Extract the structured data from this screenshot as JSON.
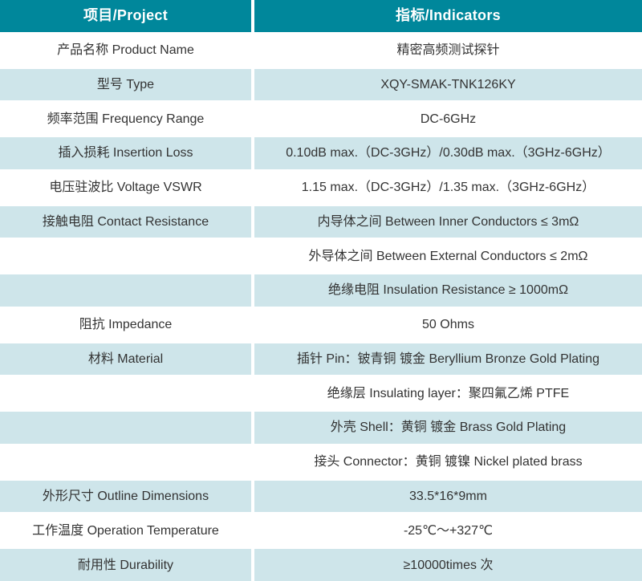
{
  "table": {
    "header": {
      "project": "项目/Project",
      "indicators": "指标/Indicators"
    },
    "rows": [
      {
        "project": "产品名称 Product Name",
        "indicator": "精密高频测试探针"
      },
      {
        "project": "型号 Type",
        "indicator": "XQY-SMAK-TNK126KY"
      },
      {
        "project": "频率范围 Frequency Range",
        "indicator": "DC-6GHz"
      },
      {
        "project": "插入损耗 Insertion Loss",
        "indicator": "0.10dB max.（DC-3GHz）/0.30dB max.（3GHz-6GHz）"
      },
      {
        "project": "电压驻波比 Voltage VSWR",
        "indicator": "1.15 max.（DC-3GHz）/1.35 max.（3GHz-6GHz）"
      },
      {
        "project": "接触电阻 Contact Resistance",
        "indicator": "内导体之间 Between Inner Conductors ≤ 3mΩ"
      },
      {
        "project": "",
        "indicator": "外导体之间 Between External Conductors ≤ 2mΩ"
      },
      {
        "project": "",
        "indicator": "绝缘电阻 Insulation Resistance ≥ 1000mΩ"
      },
      {
        "project": "阻抗 Impedance",
        "indicator": "50 Ohms"
      },
      {
        "project": "材料 Material",
        "indicator": "插针 Pin：铍青铜 镀金 Beryllium Bronze Gold Plating"
      },
      {
        "project": "",
        "indicator": "绝缘层 Insulating layer：聚四氟乙烯 PTFE"
      },
      {
        "project": "",
        "indicator": "外壳 Shell：黄铜 镀金 Brass Gold Plating"
      },
      {
        "project": "",
        "indicator": "接头 Connector：黄铜 镀镍 Nickel plated brass"
      },
      {
        "project": "外形尺寸 Outline Dimensions",
        "indicator": "33.5*16*9mm"
      },
      {
        "project": "工作温度 Operation Temperature",
        "indicator": "-25℃～+327℃"
      },
      {
        "project": "耐用性 Durability",
        "indicator": "≥10000times 次"
      }
    ],
    "colors": {
      "header_bg": "#00879B",
      "header_text": "#FFFFFF",
      "stripe_bg": "#CEE5EA",
      "white_bg": "#FFFFFF",
      "body_text": "#333333",
      "gutter": "#FFFFFF"
    }
  }
}
